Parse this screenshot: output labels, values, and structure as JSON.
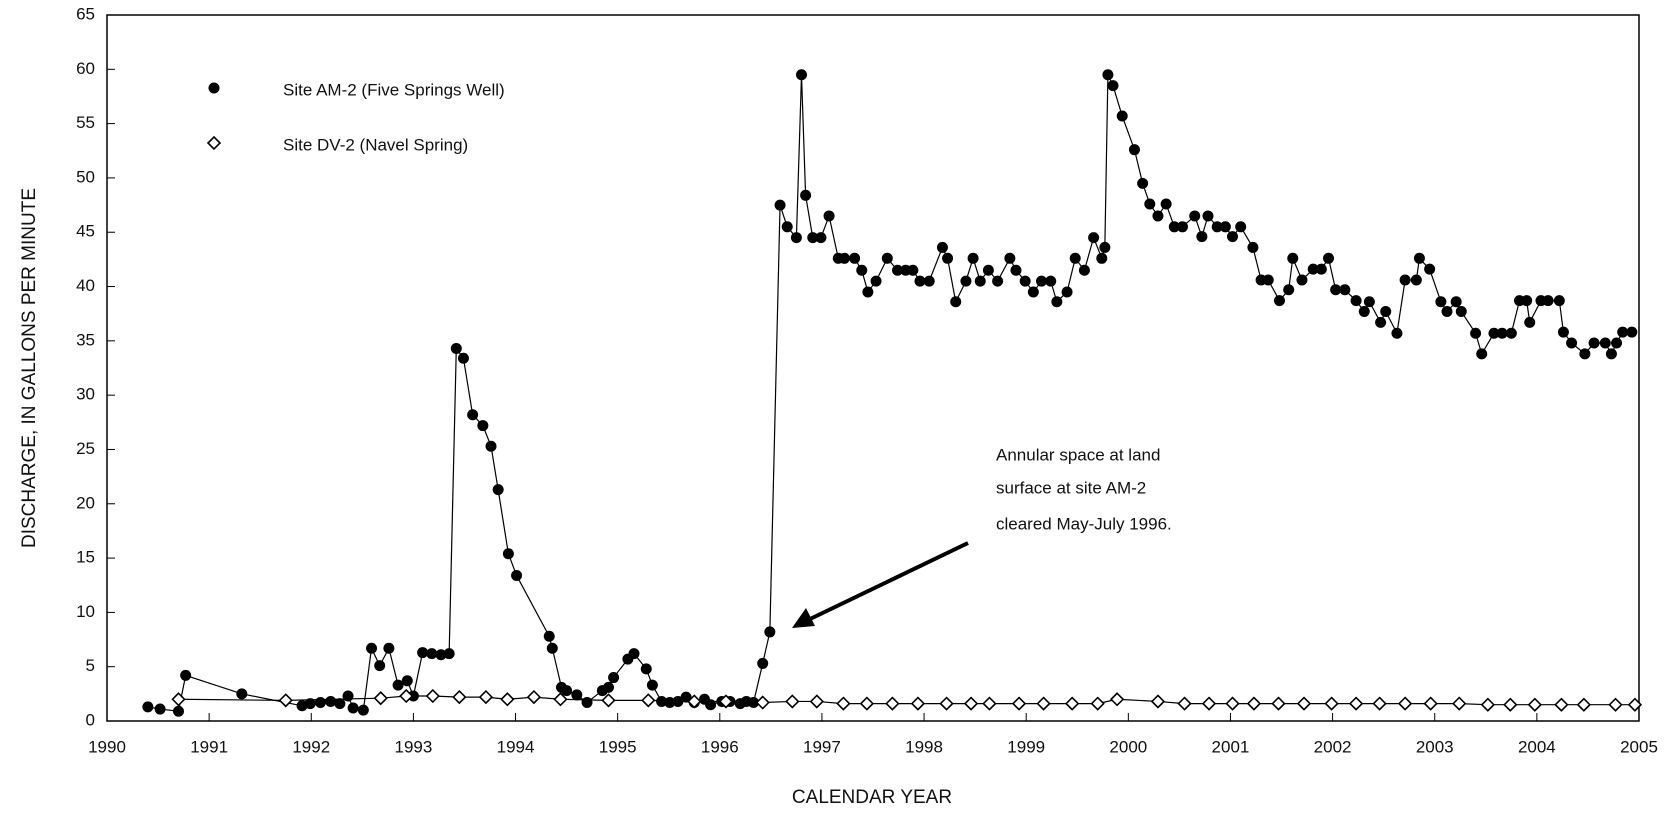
{
  "chart_data": {
    "type": "line",
    "xlabel": "CALENDAR YEAR",
    "ylabel": "DISCHARGE, IN GALLONS PER MINUTE",
    "annotation": [
      "Annular space at land",
      "surface at site AM-2",
      "cleared May-July 1996."
    ],
    "xlim": [
      1990,
      2005
    ],
    "xticks": [
      1990,
      1991,
      1992,
      1993,
      1994,
      1995,
      1996,
      1997,
      1998,
      1999,
      2000,
      2001,
      2002,
      2003,
      2004,
      2005
    ],
    "ylim": [
      0,
      65
    ],
    "yticks": [
      0,
      5,
      10,
      15,
      20,
      25,
      30,
      35,
      40,
      45,
      50,
      55,
      60,
      65
    ],
    "grid": false,
    "legend": "upper left",
    "series": [
      {
        "name": "Site AM-2 (Five Springs  Well)",
        "color": "#000000",
        "marker": "circle",
        "x": [
          1990.4,
          1990.52,
          1990.7,
          1990.77,
          1991.32,
          1991.91,
          1991.99,
          1992.09,
          1992.19,
          1992.28,
          1992.36,
          1992.41,
          1992.51,
          1992.59,
          1992.67,
          1992.76,
          1992.85,
          1992.94,
          1993.0,
          1993.09,
          1993.18,
          1993.27,
          1993.35,
          1993.42,
          1993.49,
          1993.58,
          1993.68,
          1993.76,
          1993.83,
          1993.93,
          1994.01,
          1994.33,
          1994.36,
          1994.45,
          1994.5,
          1994.6,
          1994.7,
          1994.85,
          1994.91,
          1994.96,
          1995.1,
          1995.16,
          1995.28,
          1995.34,
          1995.43,
          1995.51,
          1995.59,
          1995.67,
          1995.75,
          1995.85,
          1995.91,
          1996.02,
          1996.1,
          1996.2,
          1996.26,
          1996.33,
          1996.42,
          1996.49,
          1996.59,
          1996.66,
          1996.75,
          1996.8,
          1996.84,
          1996.91,
          1996.99,
          1997.07,
          1997.16,
          1997.22,
          1997.32,
          1997.39,
          1997.45,
          1997.53,
          1997.64,
          1997.74,
          1997.82,
          1997.89,
          1997.96,
          1998.05,
          1998.18,
          1998.23,
          1998.31,
          1998.41,
          1998.48,
          1998.55,
          1998.63,
          1998.72,
          1998.84,
          1998.9,
          1998.99,
          1999.07,
          1999.15,
          1999.24,
          1999.3,
          1999.4,
          1999.48,
          1999.57,
          1999.66,
          1999.74,
          1999.77,
          1999.8,
          1999.85,
          1999.94,
          2000.06,
          2000.14,
          2000.21,
          2000.29,
          2000.37,
          2000.45,
          2000.53,
          2000.65,
          2000.72,
          2000.78,
          2000.87,
          2000.95,
          2001.02,
          2001.1,
          2001.22,
          2001.3,
          2001.37,
          2001.48,
          2001.57,
          2001.61,
          2001.7,
          2001.81,
          2001.89,
          2001.96,
          2002.03,
          2002.12,
          2002.23,
          2002.31,
          2002.36,
          2002.47,
          2002.52,
          2002.63,
          2002.71,
          2002.82,
          2002.85,
          2002.95,
          2003.06,
          2003.12,
          2003.21,
          2003.26,
          2003.4,
          2003.46,
          2003.58,
          2003.66,
          2003.75,
          2003.83,
          2003.9,
          2003.93,
          2004.04,
          2004.11,
          2004.22,
          2004.26,
          2004.34,
          2004.47,
          2004.56,
          2004.67,
          2004.73,
          2004.78,
          2004.84,
          2004.93
        ],
        "values": [
          1.3,
          1.1,
          0.9,
          4.2,
          2.5,
          1.4,
          1.6,
          1.7,
          1.8,
          1.6,
          2.3,
          1.2,
          1.0,
          6.7,
          5.1,
          6.7,
          3.3,
          3.7,
          2.3,
          6.3,
          6.2,
          6.1,
          6.2,
          34.3,
          33.4,
          28.2,
          27.2,
          25.3,
          21.3,
          15.4,
          13.4,
          7.8,
          6.7,
          3.1,
          2.8,
          2.4,
          1.7,
          2.8,
          3.1,
          4.0,
          5.7,
          6.2,
          4.8,
          3.3,
          1.8,
          1.7,
          1.8,
          2.2,
          1.7,
          2.0,
          1.5,
          1.8,
          1.8,
          1.6,
          1.8,
          1.7,
          5.3,
          8.2,
          47.5,
          45.5,
          44.5,
          59.5,
          48.4,
          44.5,
          44.5,
          46.5,
          42.6,
          42.6,
          42.6,
          41.5,
          39.5,
          40.5,
          42.6,
          41.5,
          41.5,
          41.5,
          40.5,
          40.5,
          43.6,
          42.6,
          38.6,
          40.5,
          42.6,
          40.5,
          41.5,
          40.5,
          42.6,
          41.5,
          40.5,
          39.5,
          40.5,
          40.5,
          38.6,
          39.5,
          42.6,
          41.5,
          44.5,
          42.6,
          43.6,
          59.5,
          58.5,
          55.7,
          52.6,
          49.5,
          47.6,
          46.5,
          47.6,
          45.5,
          45.5,
          46.5,
          44.6,
          46.5,
          45.5,
          45.5,
          44.6,
          45.5,
          43.6,
          40.6,
          40.6,
          38.7,
          39.7,
          42.6,
          40.6,
          41.6,
          41.6,
          42.6,
          39.7,
          39.7,
          38.7,
          37.7,
          38.6,
          36.7,
          37.7,
          35.7,
          40.6,
          40.6,
          42.6,
          41.6,
          38.6,
          37.7,
          38.6,
          37.7,
          35.7,
          33.8,
          35.7,
          35.7,
          35.7,
          38.7,
          38.7,
          36.7,
          38.7,
          38.7,
          38.7,
          35.8,
          34.8,
          33.8,
          34.8,
          34.8,
          33.8,
          34.8,
          35.8,
          35.8
        ]
      },
      {
        "name": "Site DV-2 (Navel Spring)",
        "color": "#000000",
        "marker": "diamond",
        "x": [
          1990.7,
          1991.75,
          1992.68,
          1992.93,
          1993.19,
          1993.45,
          1993.71,
          1993.92,
          1994.18,
          1994.44,
          1994.91,
          1995.3,
          1995.75,
          1996.06,
          1996.42,
          1996.71,
          1996.95,
          1997.21,
          1997.44,
          1997.69,
          1997.94,
          1998.22,
          1998.46,
          1998.64,
          1998.93,
          1999.17,
          1999.45,
          1999.7,
          1999.89,
          2000.29,
          2000.55,
          2000.79,
          2001.02,
          2001.23,
          2001.47,
          2001.72,
          2001.99,
          2002.23,
          2002.46,
          2002.71,
          2002.96,
          2003.24,
          2003.52,
          2003.74,
          2003.98,
          2004.24,
          2004.46,
          2004.77,
          2004.96
        ],
        "values": [
          2.0,
          1.9,
          2.1,
          2.3,
          2.3,
          2.2,
          2.2,
          2.0,
          2.2,
          2.0,
          1.9,
          1.9,
          1.8,
          1.8,
          1.7,
          1.8,
          1.8,
          1.6,
          1.6,
          1.6,
          1.6,
          1.6,
          1.6,
          1.6,
          1.6,
          1.6,
          1.6,
          1.6,
          2.0,
          1.8,
          1.6,
          1.6,
          1.6,
          1.6,
          1.6,
          1.6,
          1.6,
          1.6,
          1.6,
          1.6,
          1.6,
          1.6,
          1.5,
          1.5,
          1.5,
          1.5,
          1.5,
          1.5,
          1.5
        ]
      }
    ]
  }
}
